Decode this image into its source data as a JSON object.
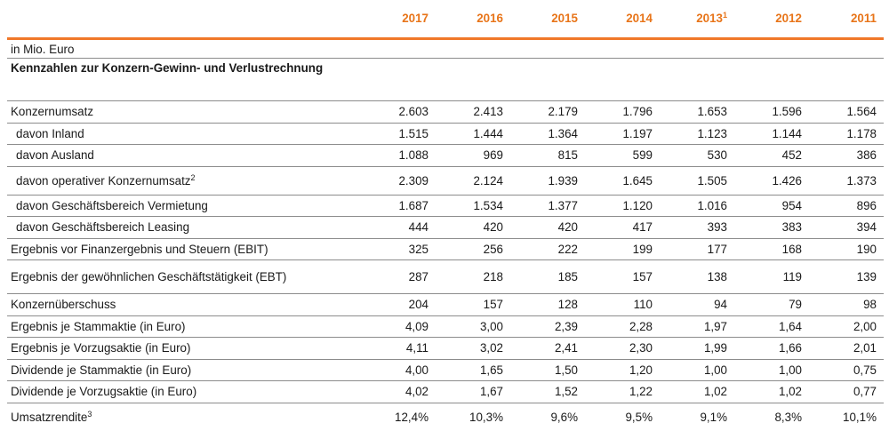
{
  "header": {
    "years": [
      {
        "year": "2017",
        "note": ""
      },
      {
        "year": "2016",
        "note": ""
      },
      {
        "year": "2015",
        "note": ""
      },
      {
        "year": "2014",
        "note": ""
      },
      {
        "year": "2013",
        "note": "1"
      },
      {
        "year": "2012",
        "note": ""
      },
      {
        "year": "2011",
        "note": ""
      }
    ]
  },
  "unit_label": "in Mio. Euro",
  "section_title": "Kennzahlen zur Konzern-Gewinn- und Verlustrechnung",
  "rows": [
    {
      "label": "Konzernumsatz",
      "note": "",
      "indent": false,
      "values": [
        "2.603",
        "2.413",
        "2.179",
        "1.796",
        "1.653",
        "1.596",
        "1.564"
      ]
    },
    {
      "label": "davon Inland",
      "note": "",
      "indent": true,
      "values": [
        "1.515",
        "1.444",
        "1.364",
        "1.197",
        "1.123",
        "1.144",
        "1.178"
      ]
    },
    {
      "label": "davon Ausland",
      "note": "",
      "indent": true,
      "values": [
        "1.088",
        "969",
        "815",
        "599",
        "530",
        "452",
        "386"
      ]
    },
    {
      "label": "davon operativer Konzernumsatz",
      "note": "2",
      "indent": true,
      "values": [
        "2.309",
        "2.124",
        "1.939",
        "1.645",
        "1.505",
        "1.426",
        "1.373"
      ]
    },
    {
      "label": "davon Geschäftsbereich Vermietung",
      "note": "",
      "indent": true,
      "values": [
        "1.687",
        "1.534",
        "1.377",
        "1.120",
        "1.016",
        "954",
        "896"
      ]
    },
    {
      "label": "davon Geschäftsbereich Leasing",
      "note": "",
      "indent": true,
      "values": [
        "444",
        "420",
        "420",
        "417",
        "393",
        "383",
        "394"
      ]
    },
    {
      "label": "Ergebnis vor Finanzergebnis und Steuern (EBIT)",
      "note": "",
      "indent": false,
      "values": [
        "325",
        "256",
        "222",
        "199",
        "177",
        "168",
        "190"
      ]
    },
    {
      "label": "Ergebnis der gewöhnlichen Geschäftstätigkeit (EBT)",
      "note": "",
      "indent": false,
      "values": [
        "287",
        "218",
        "185",
        "157",
        "138",
        "119",
        "139"
      ]
    },
    {
      "label": "Konzernüberschuss",
      "note": "",
      "indent": false,
      "values": [
        "204",
        "157",
        "128",
        "110",
        "94",
        "79",
        "98"
      ]
    },
    {
      "label": "Ergebnis je Stammaktie (in Euro)",
      "note": "",
      "indent": false,
      "values": [
        "4,09",
        "3,00",
        "2,39",
        "2,28",
        "1,97",
        "1,64",
        "2,00"
      ]
    },
    {
      "label": "Ergebnis je Vorzugsaktie (in Euro)",
      "note": "",
      "indent": false,
      "values": [
        "4,11",
        "3,02",
        "2,41",
        "2,30",
        "1,99",
        "1,66",
        "2,01"
      ]
    },
    {
      "label": "Dividende je Stammaktie (in Euro)",
      "note": "",
      "indent": false,
      "values": [
        "4,00",
        "1,65",
        "1,50",
        "1,20",
        "1,00",
        "1,00",
        "0,75"
      ]
    },
    {
      "label": "Dividende je Vorzugsaktie (in Euro)",
      "note": "",
      "indent": false,
      "values": [
        "4,02",
        "1,67",
        "1,52",
        "1,22",
        "1,02",
        "1,02",
        "0,77"
      ]
    },
    {
      "label": "Umsatzrendite",
      "note": "3",
      "indent": false,
      "values": [
        "12,4%",
        "10,3%",
        "9,6%",
        "9,5%",
        "9,1%",
        "8,3%",
        "10,1%"
      ]
    }
  ],
  "colors": {
    "accent": "#e8751a",
    "rule": "#f0782a",
    "divider": "#8c8c8c"
  }
}
